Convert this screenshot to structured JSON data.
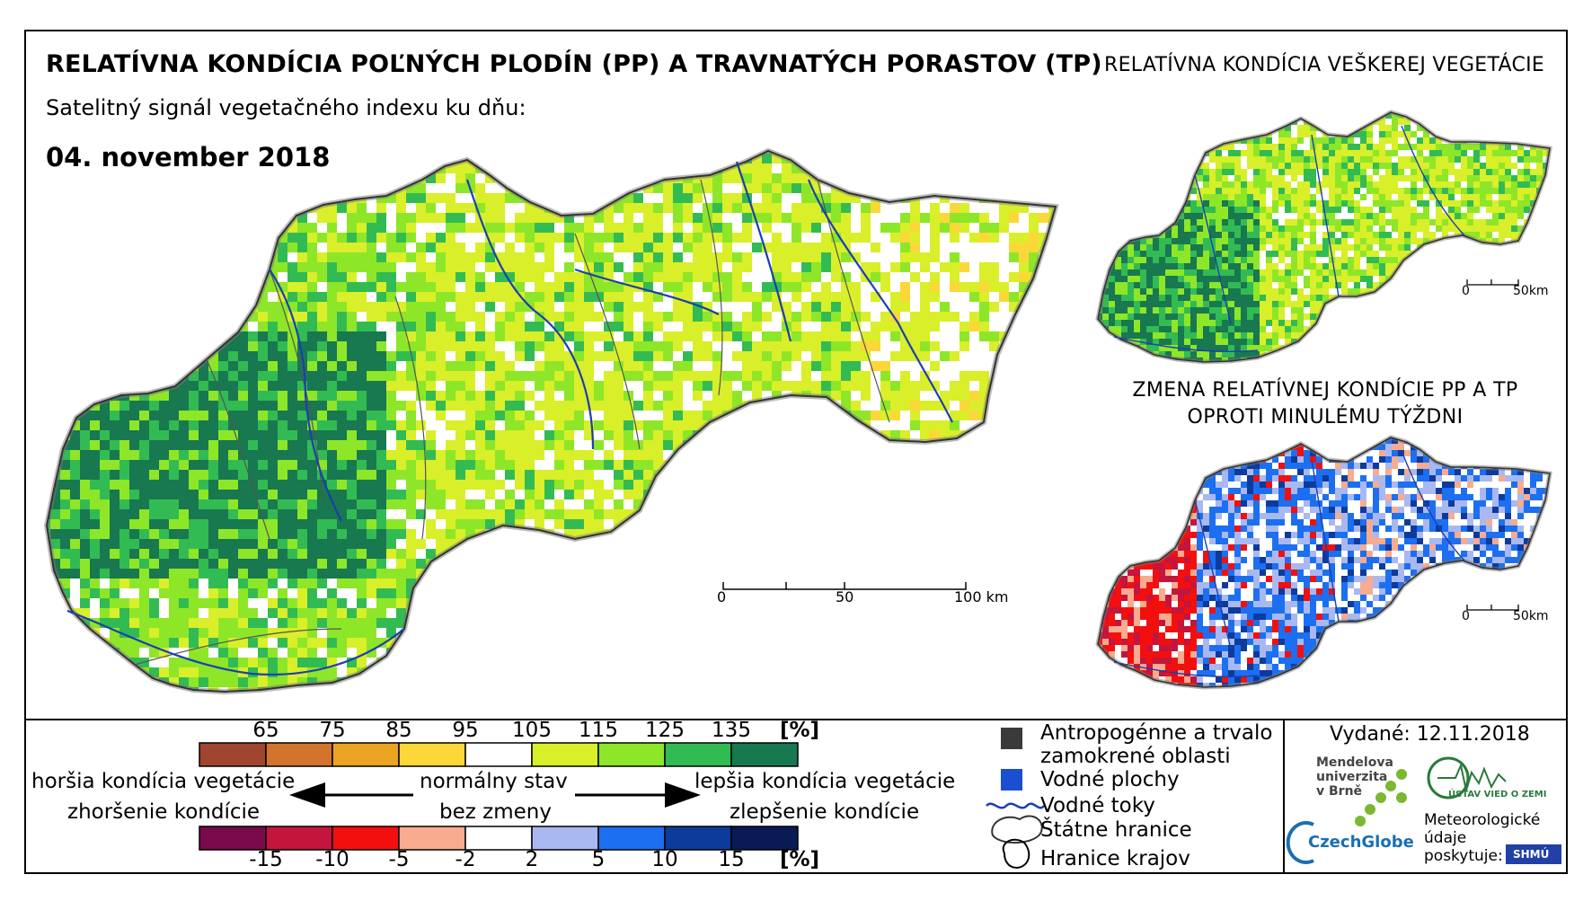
{
  "title": "RELATÍVNA KONDÍCIA POĽNÝCH PLODÍN (PP) A TRAVNATÝCH PORASTOV (TP)",
  "title_right": "RELATÍVNA KONDÍCIA VEŠKEREJ VEGETÁCIE",
  "subtitle": "Satelitný signál vegetačného indexu ku dňu:",
  "date": "04. november 2018",
  "change_title_line1": "ZMENA RELATÍVNEJ KONDÍCIE PP A TP",
  "change_title_line2": "OPROTI MINULÉMU TÝŽDNI",
  "scale_main": {
    "labels": [
      "0",
      "50",
      "100 km"
    ]
  },
  "scale_small_top": {
    "labels": [
      "0",
      "50km"
    ]
  },
  "scale_small_bottom": {
    "labels": [
      "0",
      "50km"
    ]
  },
  "legend_condition": {
    "ticks": [
      "65",
      "75",
      "85",
      "95",
      "105",
      "115",
      "125",
      "135"
    ],
    "unit": "[%]",
    "colors": [
      "#a0452f",
      "#d2742e",
      "#eba322",
      "#fbd838",
      "#ffffff",
      "#d8ef2a",
      "#8ee628",
      "#33bb53",
      "#18784f"
    ]
  },
  "legend_change": {
    "ticks": [
      "-15",
      "-10",
      "-5",
      "-2",
      "2",
      "5",
      "10",
      "15"
    ],
    "unit": "[%]",
    "colors": [
      "#7a0a4c",
      "#c4153c",
      "#f40f0f",
      "#f8ab8e",
      "#ffffff",
      "#a9b8f0",
      "#1c6ff0",
      "#0d3b9c",
      "#0a1a55"
    ]
  },
  "legend_text": {
    "worse_condition": "horšia kondícia vegetácie",
    "worsening": "zhoršenie kondície",
    "normal": "normálny stav",
    "no_change": "bez zmeny",
    "better_condition": "lepšia kondícia vegetácie",
    "improvement": "zlepšenie kondície"
  },
  "legend_symbols": {
    "anthropogenic_line1": "Antropogénne a trvalo",
    "anthropogenic_line2": "zamokrené oblasti",
    "water_bodies": "Vodné plochy",
    "rivers": "Vodné toky",
    "borders": "Štátne hranice",
    "regions": "Hranice krajov",
    "anthropogenic_color": "#3a3a3a",
    "water_color": "#1a4fd0",
    "river_color": "#1b3fb0"
  },
  "issued": "Vydané: 12.11.2018",
  "logos": {
    "mendel": "Mendelova univerzita v Brně",
    "czechglobe": "CzechGlobe",
    "institute": "ÚSTAV VIED O ZEMI",
    "meteo_line1": "Meteorologické",
    "meteo_line2": "údaje",
    "meteo_line3": "poskytuje:",
    "shmu": "SHMÚ"
  }
}
